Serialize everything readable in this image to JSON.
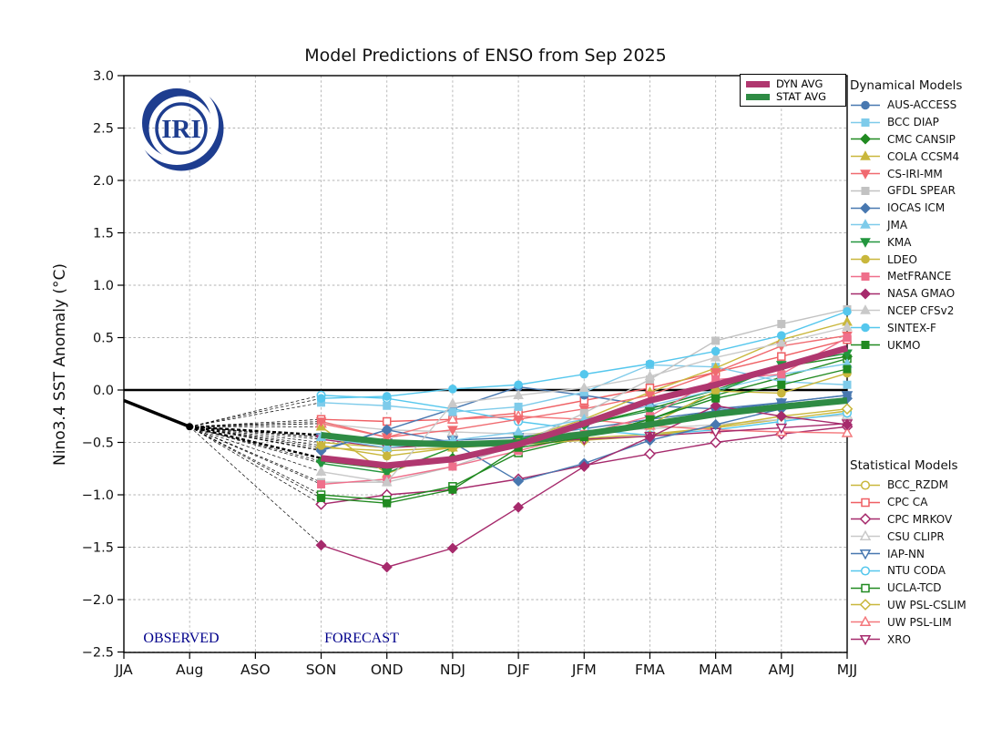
{
  "title": "Model Predictions of ENSO from Sep 2025",
  "logo": {
    "text": "IRI",
    "color": "#1e3d8f"
  },
  "ylabel": "Nino3.4 SST Anomaly (°C)",
  "annotations": {
    "observed": "OBSERVED",
    "forecast": "FORECAST",
    "color": "#00008b"
  },
  "legend_dynamical_title": "Dynamical Models",
  "legend_statistical_title": "Statistical Models",
  "chart_data": {
    "type": "line",
    "x_categories": [
      "JJA",
      "Aug",
      "ASO",
      "SON",
      "OND",
      "NDJ",
      "DJF",
      "JFM",
      "FMA",
      "MAM",
      "AMJ",
      "MJJ"
    ],
    "forecast_start_index": 3,
    "axis": {
      "ylim": [
        -2.5,
        3.0
      ],
      "ytick_values": [
        3.0,
        2.5,
        2.0,
        1.5,
        1.0,
        0.5,
        0.0,
        -0.5,
        -1.0,
        -1.5,
        -2.0,
        -2.5
      ],
      "ytick_labels": [
        "3.0",
        "2.5",
        "2.0",
        "1.5",
        "1.0",
        "0.5",
        "0.0",
        "−0.5",
        "−1.0",
        "−1.5",
        "−2.0",
        "−2.5"
      ],
      "grid": "dashed",
      "zero_line": true
    },
    "observed": {
      "x": [
        "JJA",
        "Aug"
      ],
      "values": [
        -0.1,
        -0.35
      ],
      "color": "#000000"
    },
    "averages": [
      {
        "name": "DYN AVG",
        "color": "#b0376f",
        "values": [
          -0.65,
          -0.72,
          -0.66,
          -0.52,
          -0.32,
          -0.1,
          0.05,
          0.22,
          0.4
        ]
      },
      {
        "name": "STAT AVG",
        "color": "#2e8b44",
        "values": [
          -0.43,
          -0.5,
          -0.52,
          -0.5,
          -0.42,
          -0.33,
          -0.23,
          -0.16,
          -0.1
        ]
      }
    ],
    "dynamical_models": [
      {
        "name": "AUS-ACCESS",
        "color": "#4878b0",
        "marker": "circle",
        "values": [
          -0.57,
          -0.38,
          -0.18,
          0.03,
          -0.05,
          -0.15,
          -0.18,
          -0.12,
          -0.05
        ]
      },
      {
        "name": "BCC DIAP",
        "color": "#7ecbea",
        "marker": "square",
        "values": [
          -0.12,
          -0.15,
          -0.21,
          -0.16,
          -0.02,
          0.24,
          0.22,
          0.08,
          0.05
        ]
      },
      {
        "name": "CMC CANSIP",
        "color": "#218a21",
        "marker": "diamond",
        "values": [
          -0.68,
          -0.75,
          -0.65,
          -0.5,
          -0.33,
          -0.18,
          0.0,
          0.22,
          0.32
        ]
      },
      {
        "name": "COLA CCSM4",
        "color": "#c9b73c",
        "marker": "tri-up",
        "values": [
          -0.35,
          -0.8,
          -0.55,
          -0.48,
          -0.28,
          -0.02,
          0.21,
          0.48,
          0.65
        ]
      },
      {
        "name": "CS-IRI-MM",
        "color": "#f06a70",
        "marker": "tri-down",
        "values": [
          -0.3,
          -0.45,
          -0.38,
          -0.28,
          -0.18,
          -0.05,
          0.17,
          0.42,
          0.52
        ]
      },
      {
        "name": "GFDL SPEAR",
        "color": "#c2c2c2",
        "marker": "square",
        "values": [
          -0.88,
          -0.88,
          -0.73,
          -0.52,
          -0.22,
          0.1,
          0.47,
          0.63,
          0.77
        ]
      },
      {
        "name": "IOCAS ICM",
        "color": "#4878b0",
        "marker": "diamond",
        "values": [
          -0.58,
          -0.38,
          -0.5,
          -0.87,
          -0.7,
          -0.48,
          -0.33,
          -0.18,
          -0.08
        ]
      },
      {
        "name": "JMA",
        "color": "#7ecbea",
        "marker": "tri-up",
        "values": [
          -0.45,
          -0.55,
          -0.48,
          -0.4,
          -0.28,
          -0.15,
          0.0,
          0.15,
          0.25
        ]
      },
      {
        "name": "KMA",
        "color": "#22963e",
        "marker": "tri-down",
        "values": [
          -0.7,
          -0.79,
          -0.55,
          -0.47,
          -0.33,
          -0.2,
          -0.03,
          0.24,
          0.35
        ]
      },
      {
        "name": "LDEO",
        "color": "#c9b73c",
        "marker": "circle",
        "values": [
          -0.53,
          -0.63,
          -0.55,
          -0.5,
          -0.42,
          -0.33,
          -0.01,
          -0.03,
          0.16
        ]
      },
      {
        "name": "MetFRANCE",
        "color": "#ef6f8b",
        "marker": "square",
        "values": [
          -0.9,
          -0.85,
          -0.73,
          -0.58,
          -0.42,
          -0.25,
          0.1,
          0.15,
          0.5
        ]
      },
      {
        "name": "NASA GMAO",
        "color": "#a62a6c",
        "marker": "diamond",
        "values": [
          -1.48,
          -1.69,
          -1.51,
          -1.12,
          -0.73,
          -0.45,
          -0.15,
          -0.25,
          -0.33
        ]
      },
      {
        "name": "NCEP CFSv2",
        "color": "#c9c9c9",
        "marker": "tri-up",
        "values": [
          -0.78,
          -0.88,
          -0.13,
          -0.05,
          0.02,
          0.13,
          0.31,
          0.45,
          0.6
        ]
      },
      {
        "name": "SINTEX-F",
        "color": "#55c7ed",
        "marker": "circle",
        "values": [
          -0.08,
          -0.06,
          0.01,
          0.05,
          0.15,
          0.25,
          0.37,
          0.52,
          0.75
        ]
      },
      {
        "name": "UKMO",
        "color": "#218a21",
        "marker": "square",
        "values": [
          -1.03,
          -1.08,
          -0.95,
          -0.55,
          -0.45,
          -0.28,
          -0.08,
          0.05,
          0.2
        ]
      }
    ],
    "statistical_models": [
      {
        "name": "BCC_RZDM",
        "color": "#c9b73c",
        "marker": "circle",
        "values": [
          -0.5,
          -0.55,
          -0.52,
          -0.5,
          -0.46,
          -0.42,
          -0.36,
          -0.28,
          -0.2
        ]
      },
      {
        "name": "CPC CA",
        "color": "#ef5f63",
        "marker": "square",
        "values": [
          -0.28,
          -0.3,
          -0.28,
          -0.22,
          -0.1,
          0.02,
          0.17,
          0.32,
          0.48
        ]
      },
      {
        "name": "CPC MRKOV",
        "color": "#a62a6c",
        "marker": "diamond",
        "values": [
          -1.09,
          -1.0,
          -0.95,
          -0.85,
          -0.72,
          -0.61,
          -0.5,
          -0.42,
          -0.35
        ]
      },
      {
        "name": "CSU CLIPR",
        "color": "#c9c9c9",
        "marker": "tri-up",
        "values": [
          -0.32,
          -0.38,
          -0.4,
          -0.42,
          -0.4,
          -0.37,
          -0.33,
          -0.28,
          -0.24
        ]
      },
      {
        "name": "IAP-NN",
        "color": "#4878b0",
        "marker": "tri-down",
        "values": [
          -0.45,
          -0.5,
          -0.48,
          -0.45,
          -0.37,
          -0.28,
          -0.2,
          -0.12,
          -0.05
        ]
      },
      {
        "name": "NTU CODA",
        "color": "#55c7ed",
        "marker": "circle",
        "values": [
          -0.05,
          -0.08,
          -0.18,
          -0.3,
          -0.38,
          -0.43,
          -0.38,
          -0.3,
          -0.22
        ]
      },
      {
        "name": "UCLA-TCD",
        "color": "#218a21",
        "marker": "square",
        "values": [
          -1.0,
          -1.05,
          -0.92,
          -0.6,
          -0.45,
          -0.28,
          -0.05,
          0.12,
          0.3
        ]
      },
      {
        "name": "UW PSL-CSLIM",
        "color": "#c9b73c",
        "marker": "diamond",
        "values": [
          -0.55,
          -0.58,
          -0.55,
          -0.52,
          -0.48,
          -0.44,
          -0.35,
          -0.25,
          -0.18
        ]
      },
      {
        "name": "UW PSL-LIM",
        "color": "#f4787c",
        "marker": "tri-up",
        "values": [
          -0.32,
          -0.45,
          -0.28,
          -0.25,
          -0.28,
          -0.34,
          -0.38,
          -0.4,
          -0.41
        ]
      },
      {
        "name": "XRO",
        "color": "#a62a6c",
        "marker": "tri-down",
        "values": [
          -0.47,
          -0.55,
          -0.52,
          -0.5,
          -0.47,
          -0.44,
          -0.4,
          -0.36,
          -0.32
        ]
      }
    ]
  }
}
